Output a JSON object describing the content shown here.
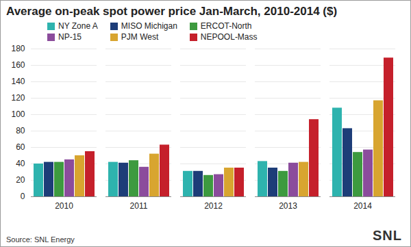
{
  "chart_data": {
    "type": "bar",
    "title": "Average on-peak spot power price Jan-March, 2010-2014 ($)",
    "source": "Source: SNL Energy",
    "logo": "SNL",
    "categories": [
      "2010",
      "2011",
      "2012",
      "2013",
      "2014"
    ],
    "series": [
      {
        "name": "NY Zone A",
        "color": "#2eb3ae",
        "values": [
          40,
          42,
          31,
          43,
          108
        ]
      },
      {
        "name": "MISO Michigan",
        "color": "#1d3d78",
        "values": [
          42,
          41,
          31,
          35,
          83
        ]
      },
      {
        "name": "ERCOT-North",
        "color": "#3d9a3f",
        "values": [
          42,
          44,
          26,
          31,
          54
        ]
      },
      {
        "name": "NP-15",
        "color": "#8b4c9c",
        "values": [
          45,
          36,
          27,
          41,
          57
        ]
      },
      {
        "name": "PJM West",
        "color": "#d8a530",
        "values": [
          50,
          52,
          35,
          42,
          117
        ]
      },
      {
        "name": "NEPOOL-Mass",
        "color": "#c5202b",
        "values": [
          55,
          63,
          35,
          94,
          169
        ]
      }
    ],
    "ylim": [
      0,
      180
    ],
    "yticks": [
      0,
      20,
      40,
      60,
      80,
      100,
      120,
      140,
      160,
      180
    ],
    "grid": true,
    "legend": "top"
  }
}
